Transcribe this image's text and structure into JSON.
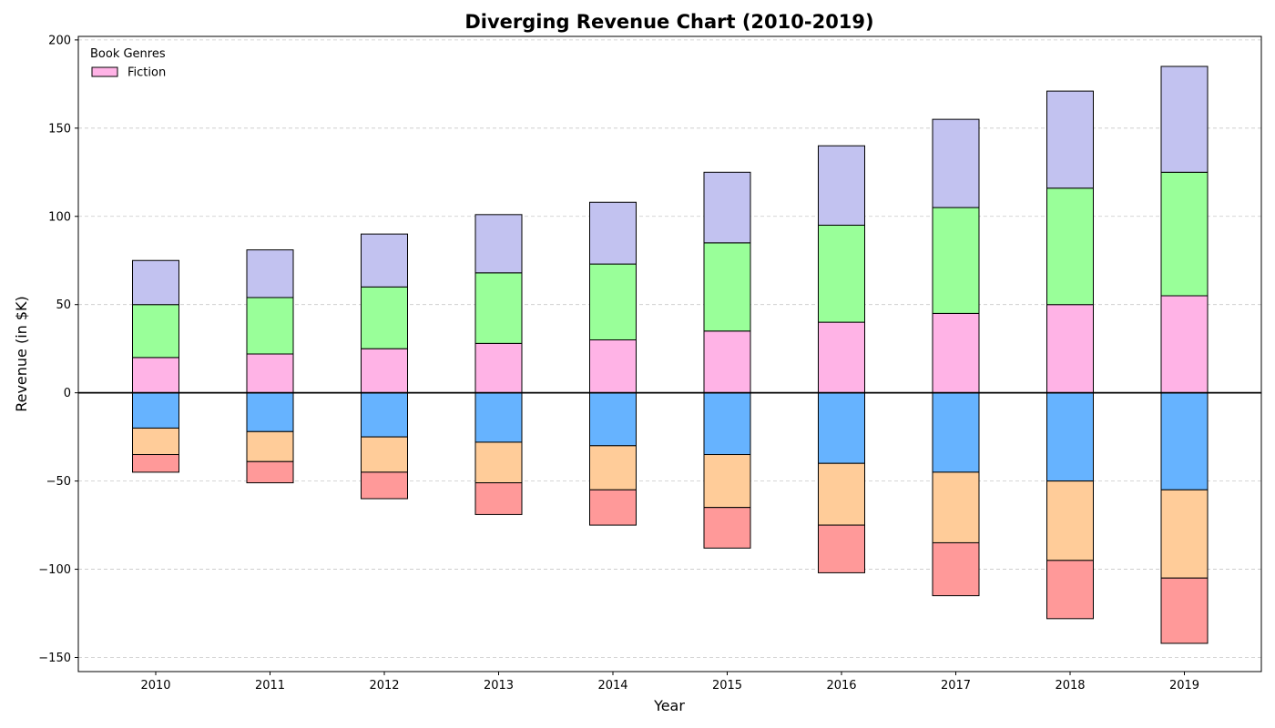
{
  "chart_data": {
    "type": "bar",
    "stacked": true,
    "diverging": true,
    "title": "Diverging Revenue Chart (2010-2019)",
    "xlabel": "Year",
    "ylabel": "Revenue (in $K)",
    "categories": [
      "2010",
      "2011",
      "2012",
      "2013",
      "2014",
      "2015",
      "2016",
      "2017",
      "2018",
      "2019"
    ],
    "ylim": [
      -158,
      202
    ],
    "yticks": [
      -150,
      -100,
      -50,
      0,
      50,
      100,
      150,
      200
    ],
    "ytick_labels": [
      "−150",
      "−100",
      "−50",
      "0",
      "50",
      "100",
      "150",
      "200"
    ],
    "grid": "horizontal dashed",
    "legend": {
      "title": "Book Genres",
      "placement": "top-left",
      "entries": [
        {
          "label": "Fiction",
          "color": "#ffb3e6"
        }
      ]
    },
    "series": [
      {
        "color": "#ffb3e6",
        "values": [
          20,
          22,
          25,
          28,
          30,
          35,
          40,
          45,
          50,
          55
        ]
      },
      {
        "color": "#99ff99",
        "values": [
          30,
          32,
          35,
          40,
          43,
          50,
          55,
          60,
          66,
          70
        ]
      },
      {
        "color": "#c2c2f0",
        "values": [
          25,
          27,
          30,
          33,
          35,
          40,
          45,
          50,
          55,
          60
        ]
      },
      {
        "color": "#66b3ff",
        "values": [
          -20,
          -22,
          -25,
          -28,
          -30,
          -35,
          -40,
          -45,
          -50,
          -55
        ]
      },
      {
        "color": "#ffcc99",
        "values": [
          -15,
          -17,
          -20,
          -23,
          -25,
          -30,
          -35,
          -40,
          -45,
          -50
        ]
      },
      {
        "color": "#ff9999",
        "values": [
          -10,
          -12,
          -15,
          -18,
          -20,
          -23,
          -27,
          -30,
          -33,
          -37
        ]
      }
    ]
  }
}
